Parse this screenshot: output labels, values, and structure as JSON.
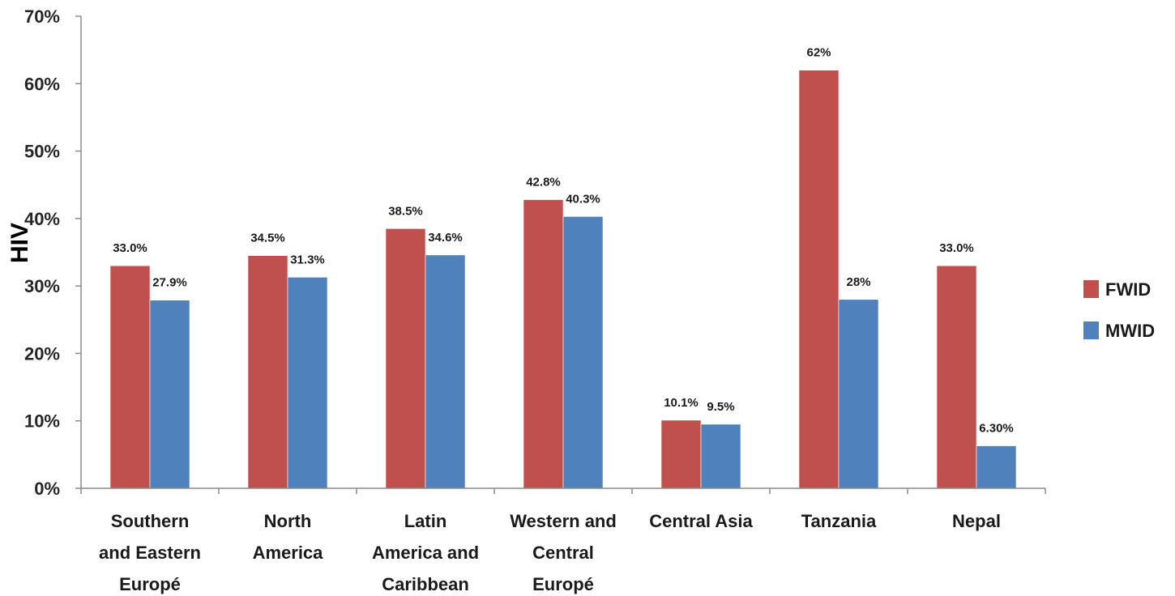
{
  "chart_data": {
    "type": "bar",
    "title": "",
    "xlabel": "",
    "ylabel": "HIV",
    "ylim": [
      0,
      70
    ],
    "y_tick_labels": [
      "0%",
      "10%",
      "20%",
      "30%",
      "40%",
      "50%",
      "60%",
      "70%"
    ],
    "grid": false,
    "legend_position": "right",
    "categories": [
      [
        "Southern",
        "and Eastern",
        "Europé"
      ],
      [
        "North",
        "America"
      ],
      [
        "Latin",
        "America and",
        "Caribbean"
      ],
      [
        "Western and",
        "Central",
        "Europé"
      ],
      [
        "Central Asia"
      ],
      [
        "Tanzania"
      ],
      [
        "Nepal"
      ]
    ],
    "series": [
      {
        "name": "FWID",
        "color": "#C0504D",
        "values": [
          33.0,
          34.5,
          38.5,
          42.8,
          10.1,
          62,
          33.0
        ],
        "labels": [
          "33.0%",
          "34.5%",
          "38.5%",
          "42.8%",
          "10.1%",
          "62%",
          "33.0%"
        ]
      },
      {
        "name": "MWID",
        "color": "#4F81BD",
        "values": [
          27.9,
          31.3,
          34.6,
          40.3,
          9.5,
          28,
          6.3
        ],
        "labels": [
          "27.9%",
          "31.3%",
          "34.6%",
          "40.3%",
          "9.5%",
          "28%",
          "6.30%"
        ]
      }
    ]
  }
}
